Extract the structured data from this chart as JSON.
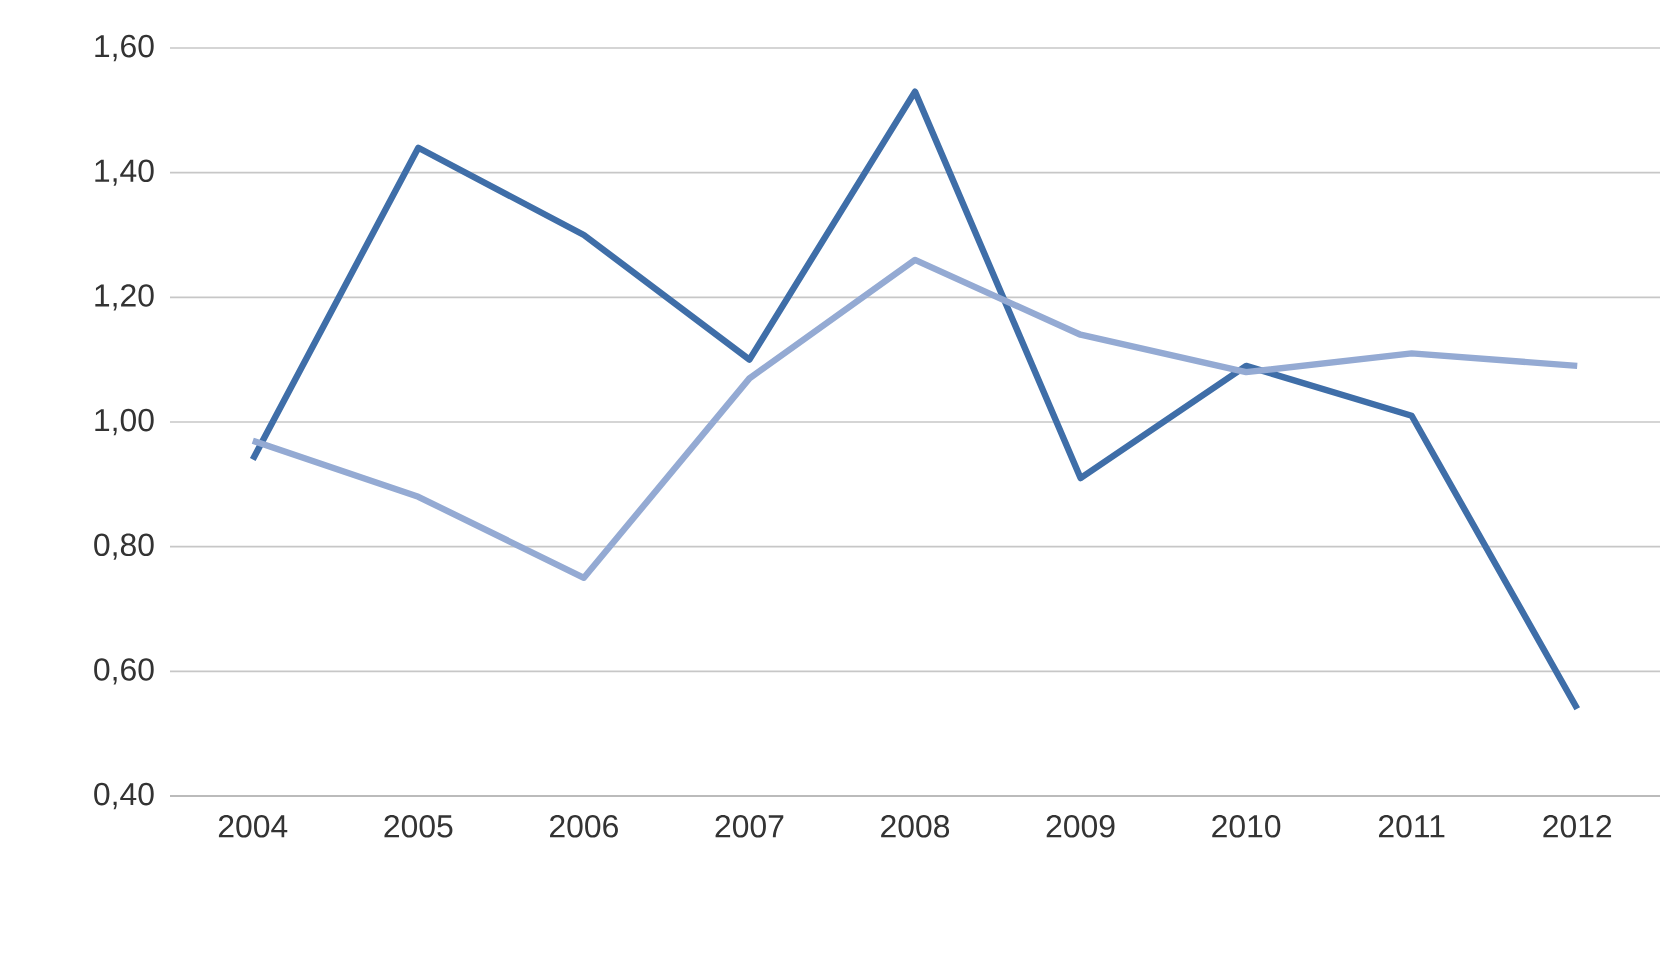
{
  "chart_data": {
    "type": "line",
    "categories": [
      "2004",
      "2005",
      "2006",
      "2007",
      "2008",
      "2009",
      "2010",
      "2011",
      "2012"
    ],
    "series": [
      {
        "color": "#3f6ea8",
        "values": [
          0.94,
          1.44,
          1.3,
          1.1,
          1.53,
          0.91,
          1.09,
          1.01,
          0.54
        ]
      },
      {
        "color": "#94aad3",
        "values": [
          0.97,
          0.88,
          0.75,
          1.07,
          1.26,
          1.14,
          1.08,
          1.11,
          1.09
        ]
      }
    ],
    "ylim": [
      0.4,
      1.6
    ],
    "yticks": [
      {
        "value": 0.4,
        "label": "0,40"
      },
      {
        "value": 0.6,
        "label": "0,60"
      },
      {
        "value": 0.8,
        "label": "0,80"
      },
      {
        "value": 1.0,
        "label": "1,00"
      },
      {
        "value": 1.2,
        "label": "1,20"
      },
      {
        "value": 1.4,
        "label": "1,40"
      },
      {
        "value": 1.6,
        "label": "1,60"
      }
    ],
    "grid": "y",
    "legend": false,
    "marker": "none",
    "line_style": "solid"
  }
}
